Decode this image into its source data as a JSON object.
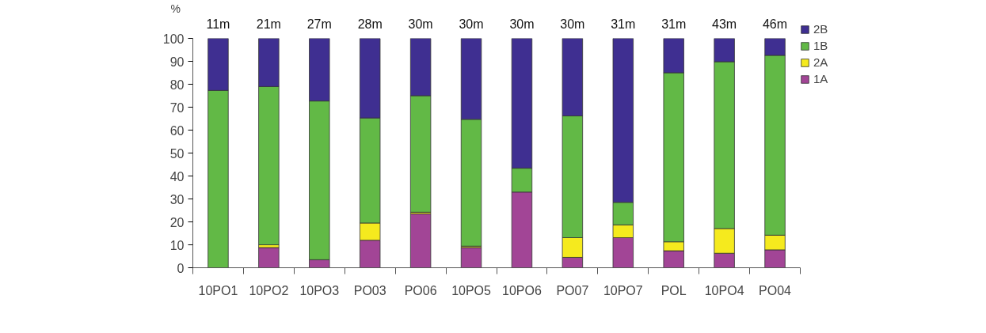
{
  "chart_data": {
    "type": "bar",
    "stacked": true,
    "ylabel": "%",
    "categories": [
      "10PO1",
      "10PO2",
      "10PO3",
      "PO03",
      "PO06",
      "10PO5",
      "10PO6",
      "PO07",
      "10PO7",
      "POL",
      "10PO4",
      "PO04"
    ],
    "series": [
      {
        "name": "1A",
        "color": "#a24596",
        "values": [
          0,
          8.8,
          3.5,
          12,
          23.5,
          8.8,
          33.0,
          4.5,
          13.1,
          7.4,
          6.3,
          7.8
        ]
      },
      {
        "name": "2A",
        "color": "#f5ea1e",
        "values": [
          0,
          1.2,
          0,
          7.5,
          0.7,
          0.6,
          0,
          8.6,
          5.6,
          3.9,
          10.8,
          6.4
        ]
      },
      {
        "name": "1B",
        "color": "#62b946",
        "values": [
          77.3,
          69,
          69.2,
          45.8,
          50.8,
          55.3,
          10.4,
          53.1,
          9.8,
          73.7,
          72.7,
          78.4
        ]
      },
      {
        "name": "2B",
        "color": "#3f2f91",
        "values": [
          22.7,
          21,
          27.3,
          34.7,
          25,
          35.3,
          56.6,
          33.8,
          71.5,
          15,
          10.2,
          7.4
        ]
      }
    ],
    "annotations": [
      "11m",
      "21m",
      "27m",
      "28m",
      "30m",
      "30m",
      "30m",
      "30m",
      "31m",
      "31m",
      "43m",
      "46m"
    ],
    "ylim": [
      0,
      100
    ],
    "yticks": [
      0,
      10,
      20,
      30,
      40,
      50,
      60,
      70,
      80,
      90,
      100
    ],
    "grid": false,
    "legend": "top right"
  }
}
